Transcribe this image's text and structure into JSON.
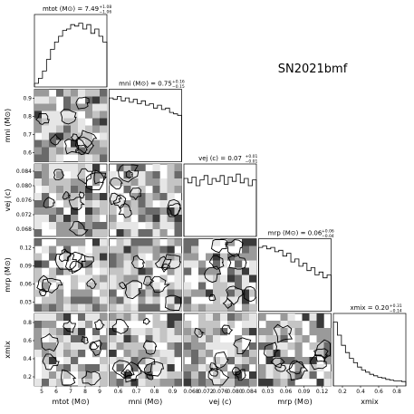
{
  "figure_title": "SN2021bmf",
  "chart_data": {
    "type": "corner",
    "title": "SN2021bmf",
    "parameters": [
      {
        "key": "mtot",
        "label": "mtot (M⊙)",
        "median": "7.49",
        "plus": "1.08",
        "minus": "1.06",
        "title": "mtot (M⊙) = 7.49",
        "range": [
          5,
          9
        ],
        "ticks": [
          "5",
          "6",
          "7",
          "8",
          "9"
        ],
        "hist": [
          0.05,
          0.12,
          0.22,
          0.38,
          0.52,
          0.62,
          0.7,
          0.78,
          0.8,
          0.86,
          0.84,
          0.88,
          0.8,
          0.86,
          0.74,
          0.8,
          0.7,
          0.62
        ]
      },
      {
        "key": "mni",
        "label": "mni (M⊙)",
        "median": "0.75",
        "plus": "0.16",
        "minus": "0.15",
        "title": "mni (M⊙) = 0.75",
        "range": [
          0.52,
          0.98
        ],
        "ticks": [
          "0.6",
          "0.7",
          "0.8",
          "0.9"
        ],
        "hist": [
          0.88,
          0.86,
          0.9,
          0.84,
          0.88,
          0.82,
          0.86,
          0.8,
          0.84,
          0.78,
          0.8,
          0.74,
          0.78,
          0.72,
          0.74,
          0.68,
          0.66,
          0.64
        ]
      },
      {
        "key": "vej",
        "label": "vej (c)",
        "median": "0.07",
        "plus": "0.01",
        "minus": "0.01",
        "title": "vej (c) = 0.07",
        "range": [
          0.065,
          0.086
        ],
        "ticks": [
          "0.068",
          "0.072",
          "0.076",
          "0.080",
          "0.084"
        ],
        "hist": [
          0.8,
          0.74,
          0.82,
          0.7,
          0.78,
          0.84,
          0.72,
          0.8,
          0.76,
          0.84,
          0.72,
          0.82,
          0.76,
          0.86,
          0.74,
          0.8,
          0.7,
          0.78
        ]
      },
      {
        "key": "mrp",
        "label": "mrp (M⊙)",
        "median": "0.06",
        "plus": "0.06",
        "minus": "0.04",
        "title": "mrp (M⊙) = 0.06",
        "range": [
          0.0,
          0.145
        ],
        "ticks": [
          "0.03",
          "0.06",
          "0.09",
          "0.12"
        ],
        "hist": [
          0.88,
          0.9,
          0.86,
          0.88,
          0.82,
          0.84,
          0.76,
          0.8,
          0.68,
          0.72,
          0.62,
          0.66,
          0.56,
          0.6,
          0.5,
          0.54,
          0.46,
          0.5
        ]
      },
      {
        "key": "xmix",
        "label": "xmix",
        "median": "0.20",
        "plus": "0.31",
        "minus": "0.14",
        "title": "xmix = 0.20",
        "range": [
          0.05,
          0.88
        ],
        "ticks": [
          "0.2",
          "0.4",
          "0.6",
          "0.8"
        ],
        "hist": [
          0.88,
          0.7,
          0.56,
          0.46,
          0.38,
          0.32,
          0.26,
          0.22,
          0.19,
          0.16,
          0.14,
          0.12,
          0.11,
          0.09,
          0.08,
          0.07,
          0.07,
          0.06
        ]
      }
    ],
    "grid": false,
    "style": "filled contours with histogram diagonals"
  }
}
